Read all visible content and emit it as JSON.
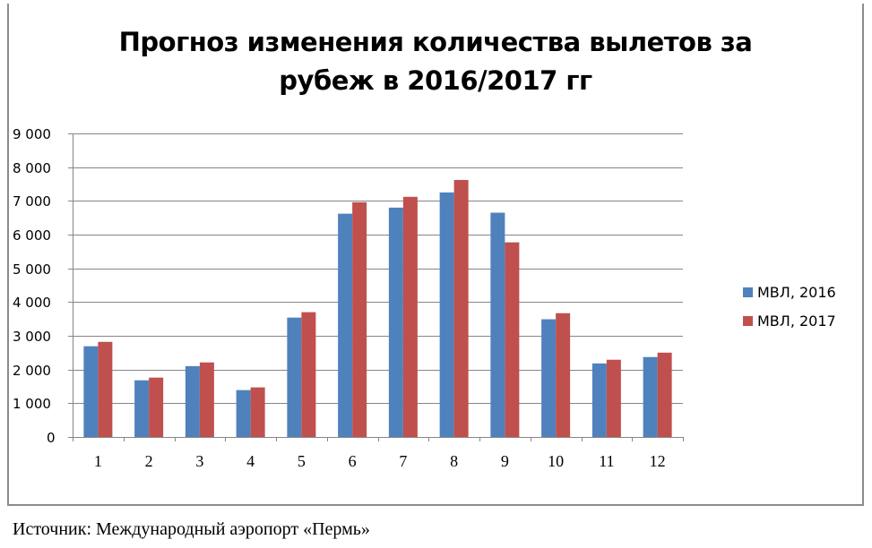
{
  "chart_data": {
    "type": "bar",
    "title": "Прогноз изменения количества вылетов за рубеж в 2016/2017 гг",
    "title_lines": [
      "Прогноз изменения количества вылетов за",
      "рубеж в 2016/2017 гг"
    ],
    "xlabel": "",
    "ylabel": "",
    "categories": [
      "1",
      "2",
      "3",
      "4",
      "5",
      "6",
      "7",
      "8",
      "9",
      "10",
      "11",
      "12"
    ],
    "series": [
      {
        "name": "МВЛ, 2016",
        "color": "#4f81bd",
        "values": [
          2690,
          1680,
          2100,
          1390,
          3540,
          6620,
          6800,
          7250,
          6650,
          3490,
          2180,
          2370
        ]
      },
      {
        "name": "МВЛ, 2017",
        "color": "#c0504d",
        "values": [
          2820,
          1760,
          2210,
          1470,
          3700,
          6960,
          7120,
          7620,
          5770,
          3670,
          2290,
          2500
        ]
      }
    ],
    "ylim": [
      0,
      9000
    ],
    "yticks": [
      "0",
      "1 000",
      "2 000",
      "3 000",
      "4 000",
      "5 000",
      "6 000",
      "7 000",
      "8 000",
      "9 000"
    ],
    "grid": true,
    "legend_position": "right"
  },
  "footer": {
    "source": "Источник: Международный аэропорт «Пермь»"
  }
}
